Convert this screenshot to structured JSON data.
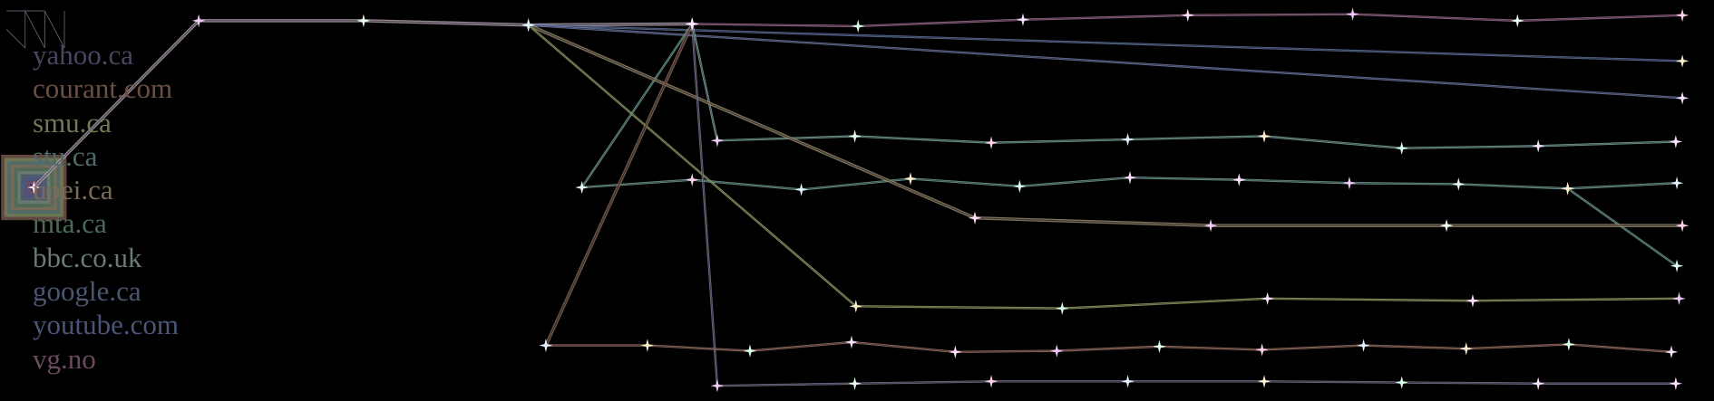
{
  "legend": [
    {
      "label": "yahoo.ca",
      "color": "#4b4660"
    },
    {
      "label": "courant.com",
      "color": "#6b4f45"
    },
    {
      "label": "smu.ca",
      "color": "#6e7a56"
    },
    {
      "label": "stu.ca",
      "color": "#4e6a6a"
    },
    {
      "label": "upei.ca",
      "color": "#7a6a58"
    },
    {
      "label": "mta.ca",
      "color": "#4d6a58"
    },
    {
      "label": "bbc.co.uk",
      "color": "#6a7b73"
    },
    {
      "label": "google.ca",
      "color": "#4b5670"
    },
    {
      "label": "youtube.com",
      "color": "#4a5578"
    },
    {
      "label": "vg.no",
      "color": "#6b4a5f"
    }
  ],
  "line_colors": {
    "trunk": "#b8a8b8",
    "pink": "#b07aa0",
    "blue1": "#6d7fb0",
    "blue2": "#7a86b8",
    "teal1": "#8ab8b0",
    "teal2": "#7fb0a8",
    "tan": "#9a8a70",
    "green": "#a8b878",
    "brown": "#8a6a5a",
    "purple": "#8a80a0",
    "orange": "#b08070"
  },
  "marker_icon": "sparkle-icon"
}
